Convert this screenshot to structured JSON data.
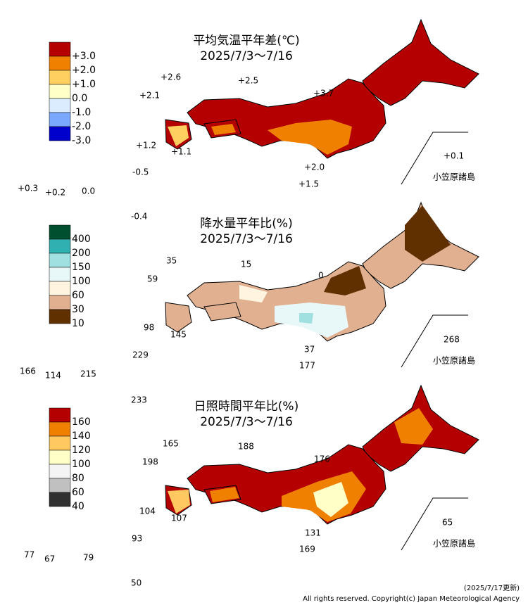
{
  "panels": [
    {
      "title": "平均気温平年差(℃)",
      "period": "2025/7/3～7/16",
      "legend": [
        {
          "label": "+3.0",
          "color": "#b40000"
        },
        {
          "label": "+2.0",
          "color": "#f08000"
        },
        {
          "label": "+1.0",
          "color": "#ffd060"
        },
        {
          "label": "0.0",
          "color": "#ffffc8"
        },
        {
          "label": "-1.0",
          "color": "#dcecff"
        },
        {
          "label": "-2.0",
          "color": "#7aa8ff"
        },
        {
          "label": "-3.0",
          "color": "#0000cc"
        }
      ],
      "stations": [
        "+2.6",
        "+2.5",
        "+2.1",
        "+3.7",
        "+1.2",
        "+1.1",
        "-0.5",
        "+2.0",
        "+0.3",
        "+0.2",
        "0.0",
        "+1.5",
        "+0.1",
        "小笠原諸島",
        "-0.4"
      ]
    },
    {
      "title": "降水量平年比(%)",
      "period": "2025/7/3～7/16",
      "legend": [
        {
          "label": "400",
          "color": "#005030"
        },
        {
          "label": "200",
          "color": "#30b0b0"
        },
        {
          "label": "150",
          "color": "#a0e0e0"
        },
        {
          "label": "100",
          "color": "#e8f8f8"
        },
        {
          "label": "60",
          "color": "#fff4e0"
        },
        {
          "label": "30",
          "color": "#e0b090"
        },
        {
          "label": "10",
          "color": "#603000"
        }
      ],
      "stations": [
        "35",
        "15",
        "59",
        "0",
        "98",
        "145",
        "37",
        "177",
        "166",
        "114",
        "215",
        "229",
        "268",
        "小笠原諸島",
        "233"
      ]
    },
    {
      "title": "日照時間平年比(%)",
      "period": "2025/7/3～7/16",
      "legend": [
        {
          "label": "160",
          "color": "#b40000"
        },
        {
          "label": "140",
          "color": "#f08000"
        },
        {
          "label": "120",
          "color": "#ffc860"
        },
        {
          "label": "100",
          "color": "#ffffc8"
        },
        {
          "label": "80",
          "color": "#f4f4f4"
        },
        {
          "label": "60",
          "color": "#c0c0c0"
        },
        {
          "label": "40",
          "color": "#303030"
        }
      ],
      "stations": [
        "165",
        "188",
        "198",
        "176",
        "104",
        "107",
        "93",
        "131",
        "77",
        "67",
        "79",
        "169",
        "65",
        "小笠原諸島",
        "50"
      ]
    }
  ],
  "footer": {
    "updated": "(2025/7/17更新)",
    "copyright": "All rights reserved. Copyright(c) Japan Meteorological Agency"
  }
}
